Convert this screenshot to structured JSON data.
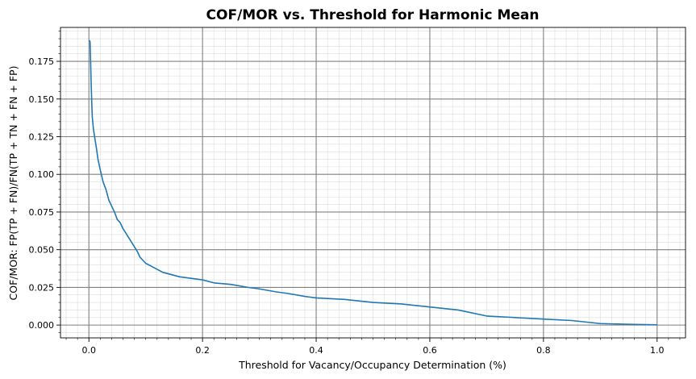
{
  "chart_data": {
    "type": "line",
    "title": "COF/MOR vs. Threshold for Harmonic Mean",
    "xlabel": "Threshold for Vacancy/Occupancy Determination (%)",
    "ylabel": "COF/MOR: FP(TP + FN)/FN(TP + TN + FN + FP)",
    "xlim": [
      -0.05,
      1.05
    ],
    "ylim": [
      -0.0085,
      0.1975
    ],
    "x_ticks": [
      0.0,
      0.2,
      0.4,
      0.6,
      0.8,
      1.0
    ],
    "x_tick_labels": [
      "0.0",
      "0.2",
      "0.4",
      "0.6",
      "0.8",
      "1.0"
    ],
    "y_ticks": [
      0.0,
      0.025,
      0.05,
      0.075,
      0.1,
      0.125,
      0.15,
      0.175
    ],
    "y_tick_labels": [
      "0.000",
      "0.025",
      "0.050",
      "0.075",
      "0.100",
      "0.125",
      "0.150",
      "0.175"
    ],
    "grid": "major and minor",
    "series_color": "#1f77b4",
    "series": [
      {
        "x": [
          0.001,
          0.002,
          0.003,
          0.004,
          0.005,
          0.006,
          0.008,
          0.01,
          0.013,
          0.016,
          0.02,
          0.025,
          0.03,
          0.035,
          0.04,
          0.045,
          0.05,
          0.055,
          0.06,
          0.065,
          0.07,
          0.075,
          0.08,
          0.085,
          0.09,
          0.095,
          0.1,
          0.105,
          0.11,
          0.115,
          0.12,
          0.13,
          0.14,
          0.15,
          0.16,
          0.18,
          0.2,
          0.22,
          0.25,
          0.28,
          0.3,
          0.33,
          0.35,
          0.38,
          0.4,
          0.45,
          0.5,
          0.55,
          0.6,
          0.65,
          0.7,
          0.75,
          0.8,
          0.85,
          0.9,
          0.95,
          1.0
        ],
        "y": [
          0.189,
          0.188,
          0.175,
          0.16,
          0.148,
          0.138,
          0.13,
          0.125,
          0.118,
          0.11,
          0.103,
          0.095,
          0.09,
          0.083,
          0.079,
          0.075,
          0.07,
          0.068,
          0.064,
          0.061,
          0.058,
          0.055,
          0.052,
          0.049,
          0.045,
          0.043,
          0.041,
          0.04,
          0.039,
          0.038,
          0.037,
          0.035,
          0.034,
          0.033,
          0.032,
          0.031,
          0.03,
          0.028,
          0.027,
          0.025,
          0.024,
          0.022,
          0.021,
          0.019,
          0.018,
          0.017,
          0.015,
          0.014,
          0.012,
          0.01,
          0.006,
          0.005,
          0.004,
          0.003,
          0.001,
          0.0005,
          0.0002
        ]
      }
    ]
  }
}
